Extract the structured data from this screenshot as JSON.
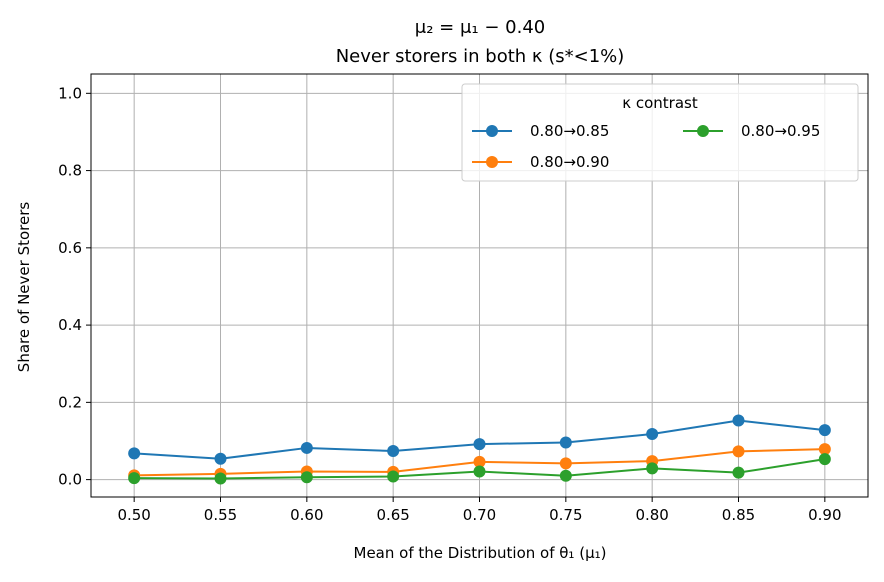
{
  "chart_data": {
    "type": "line",
    "title_line1": "μ₂ = μ₁ − 0.40",
    "title_line2": "Never storers in both κ (s*<1%)",
    "xlabel": "Mean of the Distribution of θ₁ (μ₁)",
    "ylabel": "Share of Never Storers",
    "x": [
      0.5,
      0.55,
      0.6,
      0.65,
      0.7,
      0.75,
      0.8,
      0.85,
      0.9
    ],
    "x_tick_labels": [
      "0.50",
      "0.55",
      "0.60",
      "0.65",
      "0.70",
      "0.75",
      "0.80",
      "0.85",
      "0.90"
    ],
    "y_ticks": [
      0.0,
      0.2,
      0.4,
      0.6,
      0.8,
      1.0
    ],
    "y_tick_labels": [
      "0.0",
      "0.2",
      "0.4",
      "0.6",
      "0.8",
      "1.0"
    ],
    "xlim": [
      0.475,
      0.925
    ],
    "ylim": [
      -0.045,
      1.05
    ],
    "grid": true,
    "legend_title": "κ contrast",
    "legend_placement": "upper-right",
    "series": [
      {
        "name": "0.80→0.85",
        "color": "#1f77b4",
        "values": [
          0.068,
          0.054,
          0.082,
          0.074,
          0.092,
          0.096,
          0.118,
          0.153,
          0.128
        ]
      },
      {
        "name": "0.80→0.90",
        "color": "#ff7f0e",
        "values": [
          0.011,
          0.015,
          0.021,
          0.02,
          0.046,
          0.042,
          0.048,
          0.073,
          0.079
        ]
      },
      {
        "name": "0.80→0.95",
        "color": "#2ca02c",
        "values": [
          0.004,
          0.003,
          0.006,
          0.008,
          0.021,
          0.01,
          0.029,
          0.018,
          0.053
        ]
      }
    ]
  }
}
